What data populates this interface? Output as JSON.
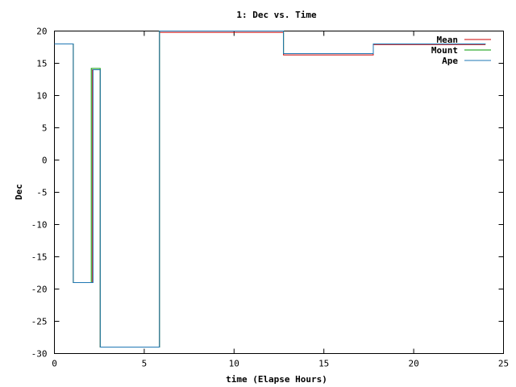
{
  "chart_data": {
    "type": "line",
    "title": "1: Dec vs. Time",
    "xlabel": "time (Elapse Hours)",
    "ylabel": "Dec",
    "xlim": [
      0,
      25
    ],
    "ylim": [
      -30,
      20
    ],
    "xticks": [
      0,
      5,
      10,
      15,
      20,
      25
    ],
    "yticks": [
      20,
      15,
      10,
      5,
      0,
      -5,
      -10,
      -15,
      -20,
      -25,
      -30
    ],
    "grid": false,
    "legend_position": "top-right",
    "series": [
      {
        "name": "Mean",
        "color": "#cc0000",
        "x": [
          0,
          1.05,
          1.05,
          2.12,
          2.12,
          2.55,
          2.55,
          5.85,
          5.85,
          12.75,
          12.75,
          17.75,
          17.75,
          24
        ],
        "y": [
          18,
          18,
          -19,
          -19,
          14,
          14,
          -29,
          -29,
          19.8,
          19.8,
          16.3,
          16.3,
          17.9,
          17.9
        ]
      },
      {
        "name": "Mount",
        "color": "#009900",
        "x": [
          0,
          1.05,
          1.05,
          2.05,
          2.05,
          2.55,
          2.55,
          5.85,
          5.85,
          12.75,
          12.75,
          17.75,
          17.75,
          24
        ],
        "y": [
          18,
          18,
          -19,
          -19,
          14.2,
          14.2,
          -29,
          -29,
          20,
          20,
          16.5,
          16.5,
          18,
          18
        ]
      },
      {
        "name": "Ape",
        "color": "#1f77b4",
        "x": [
          0,
          1.05,
          1.05,
          2.15,
          2.15,
          2.55,
          2.55,
          5.85,
          5.85,
          12.75,
          12.75,
          17.75,
          17.75,
          24
        ],
        "y": [
          18,
          18,
          -19,
          -19,
          14,
          14,
          -29,
          -29,
          20,
          20,
          16.5,
          16.5,
          18,
          18
        ]
      }
    ]
  }
}
